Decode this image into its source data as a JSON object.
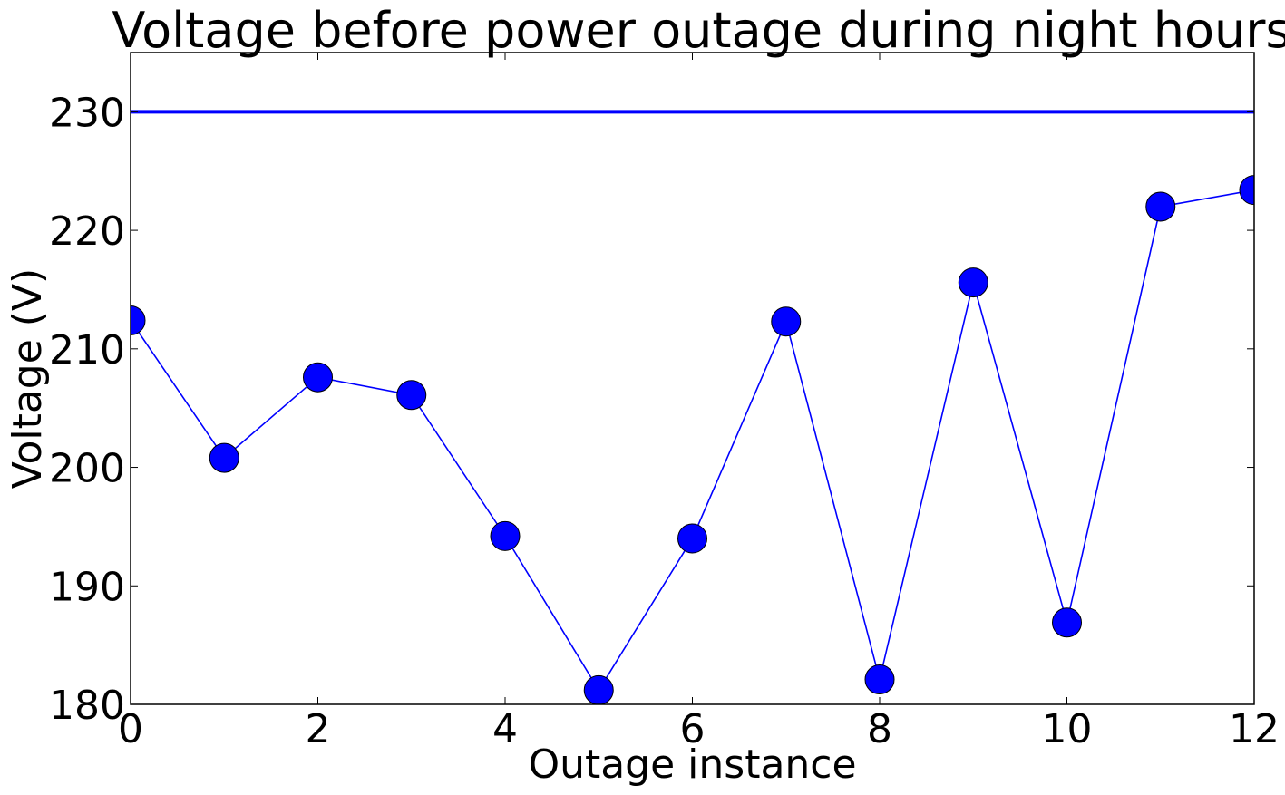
{
  "chart_data": {
    "type": "line",
    "title": "Voltage before power outage during night hours",
    "xlabel": "Outage instance",
    "ylabel": "Voltage (V)",
    "xlim": [
      0,
      12
    ],
    "ylim": [
      180,
      235
    ],
    "xticks": [
      0,
      2,
      4,
      6,
      8,
      10,
      12
    ],
    "yticks": [
      180,
      190,
      200,
      210,
      220,
      230
    ],
    "grid": false,
    "reference_line": {
      "y": 230,
      "color": "#0000ff"
    },
    "series": [
      {
        "x": [
          0,
          1,
          2,
          3,
          4,
          5,
          6,
          7,
          8,
          9,
          10,
          11,
          12
        ],
        "values": [
          212.4,
          200.8,
          207.6,
          206.1,
          194.2,
          181.2,
          194.0,
          212.3,
          182.1,
          215.6,
          186.9,
          222.0,
          223.4
        ],
        "color": "#0000ff",
        "marker": "circle"
      }
    ]
  }
}
